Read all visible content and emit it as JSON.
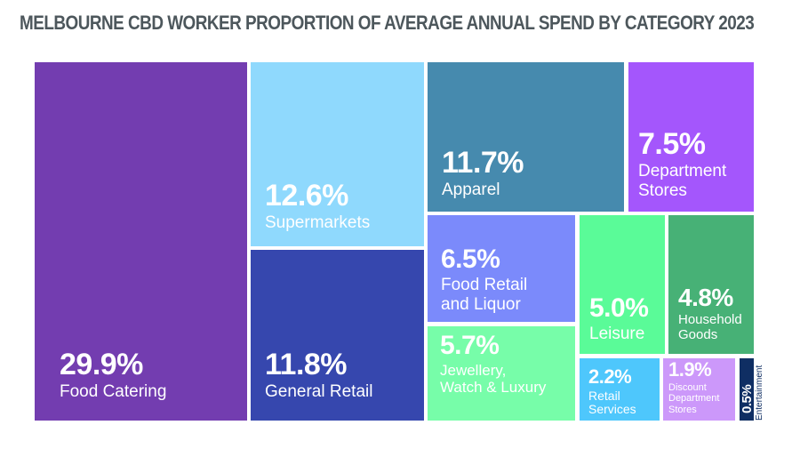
{
  "title": "MELBOURNE CBD WORKER PROPORTION OF AVERAGE ANNUAL SPEND BY CATEGORY 2023",
  "chart_data": {
    "type": "treemap",
    "title": "MELBOURNE CBD WORKER PROPORTION OF AVERAGE ANNUAL SPEND BY CATEGORY 2023",
    "unit": "%",
    "items": [
      {
        "key": "food-catering",
        "label": "Food Catering",
        "value": 29.9,
        "display": "29.9%",
        "color": "#733db0"
      },
      {
        "key": "supermarkets",
        "label": "Supermarkets",
        "value": 12.6,
        "display": "12.6%",
        "color": "#8fd9fd"
      },
      {
        "key": "general-retail",
        "label": "General Retail",
        "value": 11.8,
        "display": "11.8%",
        "color": "#3647ae"
      },
      {
        "key": "apparel",
        "label": "Apparel",
        "value": 11.7,
        "display": "11.7%",
        "color": "#468aae"
      },
      {
        "key": "department-stores",
        "label": "Department\nStores",
        "value": 7.5,
        "display": "7.5%",
        "color": "#a456fc"
      },
      {
        "key": "food-retail-liquor",
        "label": "Food Retail\nand Liquor",
        "value": 6.5,
        "display": "6.5%",
        "color": "#7b8afb"
      },
      {
        "key": "jewellery",
        "label": "Jewellery,\nWatch & Luxury",
        "value": 5.7,
        "display": "5.7%",
        "color": "#77fda9"
      },
      {
        "key": "leisure",
        "label": "Leisure",
        "value": 5.0,
        "display": "5.0%",
        "color": "#5afb98"
      },
      {
        "key": "household-goods",
        "label": "Household\nGoods",
        "value": 4.8,
        "display": "4.8%",
        "color": "#47b176"
      },
      {
        "key": "retail-services",
        "label": "Retail\nServices",
        "value": 2.2,
        "display": "2.2%",
        "color": "#4ec7fc"
      },
      {
        "key": "discount-department-stores",
        "label": "Discount\nDepartment\nStores",
        "value": 1.9,
        "display": "1.9%",
        "color": "#cc98fa"
      },
      {
        "key": "entertainment",
        "label": "Entertainment",
        "value": 0.5,
        "display": "0.5%",
        "color": "#0f2e63"
      }
    ]
  }
}
